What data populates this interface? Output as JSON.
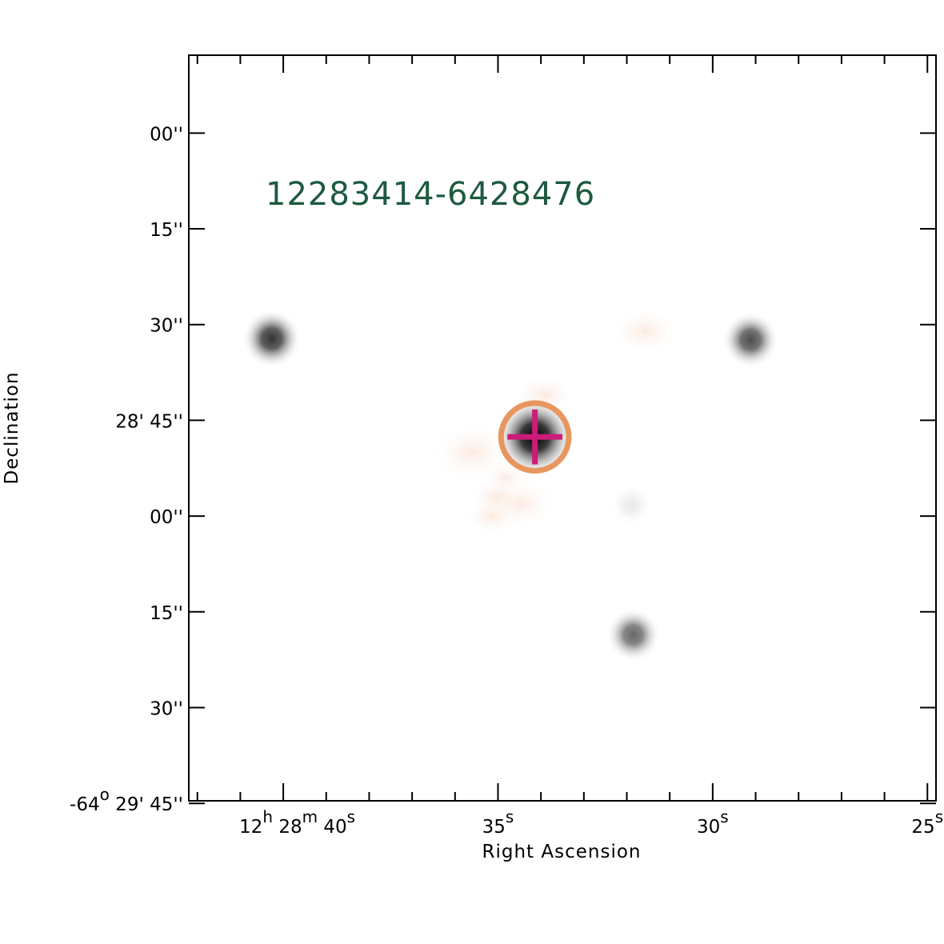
{
  "chart_data": {
    "type": "scatter",
    "title": "12283414-6428476",
    "xlabel": "Right Ascension",
    "ylabel": "Declination",
    "x_unit": "seconds of RA (12h 28m)",
    "y_unit": "arcseconds of Dec (-64° 28')",
    "xlim": [
      42.2,
      24.8
    ],
    "ylim": [
      -12.2,
      104.6
    ],
    "grid": false,
    "legend": "none",
    "x_ticks": [
      {
        "value": 40,
        "label": {
          "h": "12",
          "h_unit": "h",
          "m": "28",
          "m_unit": "m",
          "s": "40",
          "s_unit": "s"
        }
      },
      {
        "value": 35,
        "label": {
          "s": "35",
          "s_unit": "s"
        }
      },
      {
        "value": 30,
        "label": {
          "s": "30",
          "s_unit": "s"
        }
      },
      {
        "value": 25,
        "label": {
          "s": "25",
          "s_unit": "s"
        }
      }
    ],
    "x_minor_ticks": [
      42,
      41,
      39,
      38,
      37,
      36,
      34,
      33,
      32,
      31,
      29,
      28,
      27,
      26
    ],
    "y_ticks": [
      {
        "value": 0,
        "label": {
          "sec": "00''"
        }
      },
      {
        "value": 15,
        "label": {
          "sec": "15''"
        }
      },
      {
        "value": 30,
        "label": {
          "sec": "30''"
        }
      },
      {
        "value": 45,
        "label": {
          "min": "28'",
          "sec": "45''"
        }
      },
      {
        "value": 60,
        "label": {
          "sec": "00''"
        }
      },
      {
        "value": 75,
        "label": {
          "sec": "15''"
        }
      },
      {
        "value": 90,
        "label": {
          "sec": "30''"
        }
      },
      {
        "value": 105,
        "label": {
          "deg": "-64",
          "deg_unit": "o",
          "min": "29'",
          "sec": "45''"
        }
      }
    ],
    "sources": [
      {
        "ra_s": 34.14,
        "dec_as": 47.6,
        "brightness": 1.0,
        "kind": "target"
      },
      {
        "ra_s": 40.27,
        "dec_as": 32.2,
        "brightness": 0.8,
        "kind": "field"
      },
      {
        "ra_s": 29.12,
        "dec_as": 32.4,
        "brightness": 0.7,
        "kind": "field"
      },
      {
        "ra_s": 31.85,
        "dec_as": 78.6,
        "brightness": 0.6,
        "kind": "field"
      },
      {
        "ra_s": 31.9,
        "dec_as": 58.3,
        "brightness": 0.05,
        "kind": "field"
      }
    ],
    "marker": {
      "ra_s": 34.14,
      "dec_as": 47.6,
      "circle_radius_as": 5.3,
      "cross_half_as": 4.3
    },
    "colors": {
      "title": "#1d5a3f",
      "circle": "#e8965f",
      "cross": "#cc1c78",
      "nebulosity": "#f6c8ad",
      "axes": "#000000"
    }
  }
}
